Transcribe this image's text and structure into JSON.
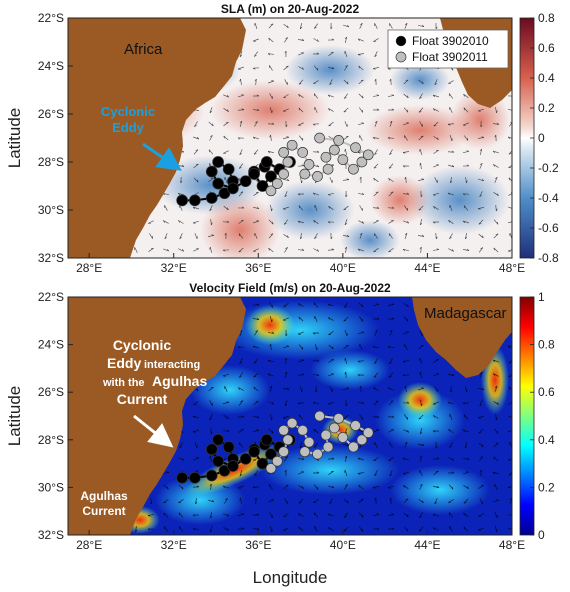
{
  "figure": {
    "xlabel": "Longitude",
    "ylabel": "Latitude",
    "lon_ticks": [
      "28°E",
      "32°E",
      "36°E",
      "40°E",
      "44°E",
      "48°E"
    ],
    "lat_ticks": [
      "22°S",
      "24°S",
      "26°S",
      "28°S",
      "30°S",
      "32°S"
    ]
  },
  "legend": {
    "float1": "Float 3902010",
    "float2": "Float 3902011",
    "float1_color": "#000000",
    "float2_color": "#bfbfbf"
  },
  "panel_top": {
    "title": "SLA (m) on 20-Aug-2022",
    "label_africa": "Africa",
    "eddy_label": [
      "Cyclonic",
      "Eddy"
    ],
    "colorbar_ticks": [
      "0.8",
      "0.6",
      "0.4",
      "0.2",
      "0",
      "-0.2",
      "-0.4",
      "-0.6",
      "-0.8"
    ]
  },
  "panel_bottom": {
    "title": "Velocity Field (m/s) on 20-Aug-2022",
    "label_madagascar": "Madagascar",
    "eddy_label_line1": "Cyclonic",
    "eddy_label_line2a": "Eddy",
    "eddy_label_line2b": "interacting",
    "eddy_label_line3a": "with the",
    "eddy_label_line3b": "Agulhas",
    "eddy_label_line4": "Current",
    "agulhas_label": [
      "Agulhas",
      "Current"
    ],
    "colorbar_ticks": [
      "1",
      "0.8",
      "0.6",
      "0.4",
      "0.2",
      "0"
    ]
  },
  "colors": {
    "land": "#9b5a23",
    "sla_neg": "#2b6cb0",
    "sla_pos": "#c0392b",
    "vel_low": "#0a1a8c",
    "vel_high": "#d7191c"
  },
  "chart_data": [
    {
      "type": "heatmap",
      "title": "SLA (m) on 20-Aug-2022",
      "xlabel": "",
      "ylabel": "Latitude",
      "xlim": [
        27,
        48
      ],
      "ylim": [
        -32,
        -22
      ],
      "colorbar_range": [
        -0.8,
        0.8
      ],
      "series": [
        {
          "name": "Float 3902010",
          "points": [
            [
              32.4,
              -29.6
            ],
            [
              33.0,
              -29.6
            ],
            [
              33.8,
              -29.5
            ],
            [
              34.4,
              -29.3
            ],
            [
              34.8,
              -28.8
            ],
            [
              34.6,
              -28.3
            ],
            [
              34.1,
              -28.0
            ],
            [
              33.8,
              -28.4
            ],
            [
              34.1,
              -28.9
            ],
            [
              34.8,
              -29.1
            ],
            [
              35.4,
              -28.8
            ],
            [
              35.8,
              -28.4
            ],
            [
              36.3,
              -28.2
            ],
            [
              36.6,
              -28.6
            ],
            [
              36.2,
              -29.0
            ],
            [
              35.8,
              -28.5
            ],
            [
              36.4,
              -28.0
            ],
            [
              37.0,
              -28.3
            ],
            [
              37.5,
              -28.0
            ]
          ]
        },
        {
          "name": "Float 3902011",
          "points": [
            [
              36.6,
              -29.2
            ],
            [
              36.9,
              -28.9
            ],
            [
              37.2,
              -28.5
            ],
            [
              37.4,
              -28.0
            ],
            [
              37.2,
              -27.6
            ],
            [
              37.6,
              -27.3
            ],
            [
              38.1,
              -27.6
            ],
            [
              38.4,
              -28.1
            ],
            [
              38.2,
              -28.5
            ],
            [
              38.8,
              -28.6
            ],
            [
              39.3,
              -28.3
            ],
            [
              39.2,
              -27.8
            ],
            [
              39.6,
              -27.5
            ],
            [
              40.0,
              -27.9
            ],
            [
              40.5,
              -28.3
            ],
            [
              40.9,
              -28.0
            ],
            [
              41.2,
              -27.7
            ],
            [
              40.6,
              -27.4
            ],
            [
              39.8,
              -27.1
            ],
            [
              38.9,
              -27.0
            ]
          ]
        }
      ]
    },
    {
      "type": "heatmap",
      "title": "Velocity Field (m/s) on 20-Aug-2022",
      "xlabel": "Longitude",
      "ylabel": "Latitude",
      "xlim": [
        27,
        48
      ],
      "ylim": [
        -32,
        -22
      ],
      "colorbar_range": [
        0,
        1
      ],
      "series": [
        {
          "name": "Float 3902010",
          "points": [
            [
              32.4,
              -29.6
            ],
            [
              33.0,
              -29.6
            ],
            [
              33.8,
              -29.5
            ],
            [
              34.4,
              -29.3
            ],
            [
              34.8,
              -28.8
            ],
            [
              34.6,
              -28.3
            ],
            [
              34.1,
              -28.0
            ],
            [
              33.8,
              -28.4
            ],
            [
              34.1,
              -28.9
            ],
            [
              34.8,
              -29.1
            ],
            [
              35.4,
              -28.8
            ],
            [
              35.8,
              -28.4
            ],
            [
              36.3,
              -28.2
            ],
            [
              36.6,
              -28.6
            ],
            [
              36.2,
              -29.0
            ],
            [
              35.8,
              -28.5
            ],
            [
              36.4,
              -28.0
            ],
            [
              37.0,
              -28.3
            ],
            [
              37.5,
              -28.0
            ]
          ]
        },
        {
          "name": "Float 3902011",
          "points": [
            [
              36.6,
              -29.2
            ],
            [
              36.9,
              -28.9
            ],
            [
              37.2,
              -28.5
            ],
            [
              37.4,
              -28.0
            ],
            [
              37.2,
              -27.6
            ],
            [
              37.6,
              -27.3
            ],
            [
              38.1,
              -27.6
            ],
            [
              38.4,
              -28.1
            ],
            [
              38.2,
              -28.5
            ],
            [
              38.8,
              -28.6
            ],
            [
              39.3,
              -28.3
            ],
            [
              39.2,
              -27.8
            ],
            [
              39.6,
              -27.5
            ],
            [
              40.0,
              -27.9
            ],
            [
              40.5,
              -28.3
            ],
            [
              40.9,
              -28.0
            ],
            [
              41.2,
              -27.7
            ],
            [
              40.6,
              -27.4
            ],
            [
              39.8,
              -27.1
            ],
            [
              38.9,
              -27.0
            ]
          ]
        }
      ]
    }
  ]
}
